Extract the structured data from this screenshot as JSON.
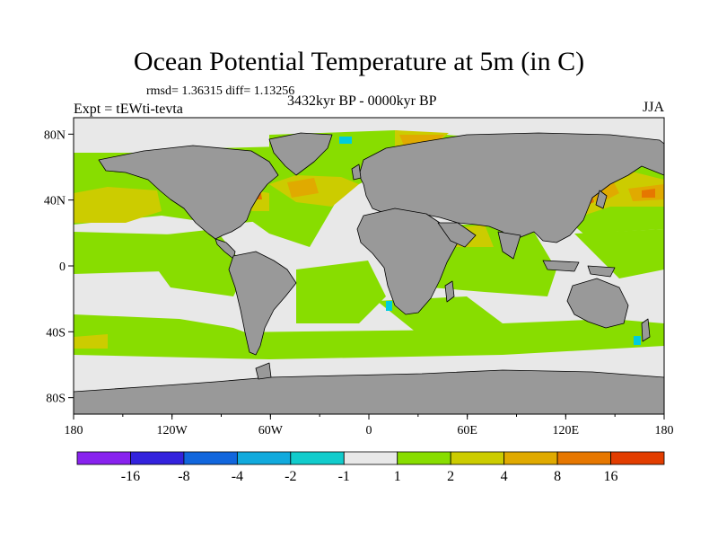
{
  "title": "Ocean Potential Temperature at 5m (in C)",
  "stats": "rmsd= 1.36315 diff= 1.13256",
  "left_label": "Expt = tEWti-tevta",
  "center_label": "3432kyr BP - 0000kyr BP",
  "right_label": "JJA",
  "colors": {
    "land": "#999999",
    "coastline": "#000000",
    "near_zero": "#e8e8e8",
    "warm_1": "#88dd00",
    "warm_2": "#cccc00",
    "warm_4": "#e0aa00",
    "warm_8": "#e67700",
    "cool_1": "#00ccdd"
  },
  "axes": {
    "x_ticks": [
      "180",
      "120W",
      "60W",
      "0",
      "60E",
      "120E",
      "180"
    ],
    "y_ticks": [
      "80N",
      "40N",
      "0",
      "40S",
      "80S"
    ]
  },
  "colorbar": {
    "colors": [
      "#8822ee",
      "#3322dd",
      "#1166dd",
      "#11aadd",
      "#11cccc",
      "#e8e8e8",
      "#88dd00",
      "#cccc00",
      "#e0aa00",
      "#e67700",
      "#e23d00"
    ],
    "labels": [
      "-16",
      "-8",
      "-4",
      "-2",
      "-1",
      "1",
      "2",
      "4",
      "8",
      "16"
    ]
  }
}
